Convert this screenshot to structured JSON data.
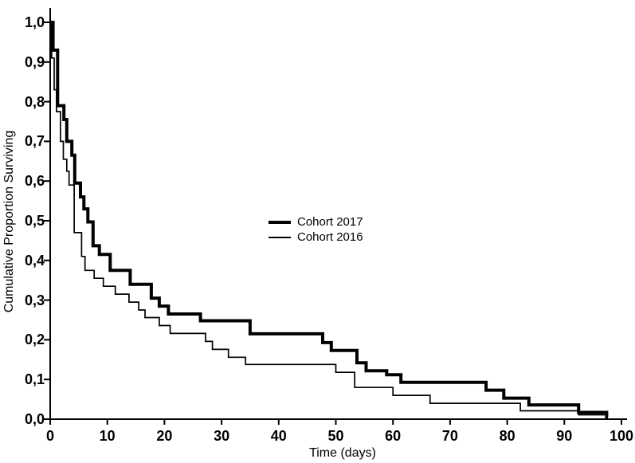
{
  "figure": {
    "background_color": "#ffffff",
    "ink_color": "#000000"
  },
  "chart_data": {
    "type": "line",
    "subtype": "kaplan-meier-step-survival",
    "title": "",
    "xlabel": "Time (days)",
    "ylabel": "Cumulative Proportion Surviving",
    "xlim": [
      0,
      100
    ],
    "ylim": [
      0.0,
      1.0
    ],
    "grid": false,
    "decimal_separator": "comma",
    "x_ticks": {
      "values": [
        0,
        10,
        20,
        30,
        40,
        50,
        60,
        70,
        80,
        90,
        100
      ],
      "labels": [
        "0",
        "10",
        "20",
        "30",
        "40",
        "50",
        "60",
        "70",
        "80",
        "90",
        "100"
      ]
    },
    "y_ticks": {
      "values": [
        0.0,
        0.1,
        0.2,
        0.3,
        0.4,
        0.5,
        0.6,
        0.7,
        0.8,
        0.9,
        1.0
      ],
      "labels": [
        "0,0",
        "0,1",
        "0,2",
        "0,3",
        "0,4",
        "0,5",
        "0,6",
        "0,7",
        "0,8",
        "0,9",
        "1,0"
      ]
    },
    "legend": {
      "position": "inside-plot-left-center",
      "items": [
        {
          "label": "Cohort 2017",
          "line_style": "thick"
        },
        {
          "label": "Cohort 2016",
          "line_style": "thin"
        }
      ]
    },
    "series": [
      {
        "name": "Cohort 2017",
        "color": "#000000",
        "line_width": 4,
        "end_time": 97.6,
        "points": [
          [
            0,
            1.0
          ],
          [
            0.5,
            0.93
          ],
          [
            1.3,
            0.79
          ],
          [
            2.4,
            0.755
          ],
          [
            2.9,
            0.7
          ],
          [
            3.8,
            0.665
          ],
          [
            4.3,
            0.595
          ],
          [
            5.3,
            0.56
          ],
          [
            5.9,
            0.53
          ],
          [
            6.6,
            0.497
          ],
          [
            7.5,
            0.437
          ],
          [
            8.6,
            0.415
          ],
          [
            10.5,
            0.375
          ],
          [
            14,
            0.34
          ],
          [
            17.7,
            0.305
          ],
          [
            19.1,
            0.285
          ],
          [
            20.7,
            0.265
          ],
          [
            26.3,
            0.248
          ],
          [
            35,
            0.215
          ],
          [
            47.7,
            0.193
          ],
          [
            49.2,
            0.173
          ],
          [
            53.7,
            0.142
          ],
          [
            55.3,
            0.122
          ],
          [
            58.9,
            0.112
          ],
          [
            61.4,
            0.093
          ],
          [
            76.3,
            0.073
          ],
          [
            79.4,
            0.053
          ],
          [
            83.8,
            0.036
          ],
          [
            92.5,
            0.017
          ],
          [
            97.4,
            0.005
          ]
        ]
      },
      {
        "name": "Cohort 2016",
        "color": "#000000",
        "line_width": 1.7,
        "end_time": 97.6,
        "points": [
          [
            0,
            1.0
          ],
          [
            0.25,
            0.91
          ],
          [
            0.7,
            0.83
          ],
          [
            1.1,
            0.775
          ],
          [
            1.8,
            0.7
          ],
          [
            2.3,
            0.655
          ],
          [
            2.9,
            0.625
          ],
          [
            3.3,
            0.59
          ],
          [
            4.2,
            0.47
          ],
          [
            5.5,
            0.41
          ],
          [
            6.1,
            0.375
          ],
          [
            7.7,
            0.355
          ],
          [
            9.3,
            0.335
          ],
          [
            11.4,
            0.315
          ],
          [
            13.8,
            0.295
          ],
          [
            15.5,
            0.275
          ],
          [
            16.6,
            0.256
          ],
          [
            19.1,
            0.236
          ],
          [
            21.0,
            0.216
          ],
          [
            27.2,
            0.196
          ],
          [
            28.4,
            0.176
          ],
          [
            31.2,
            0.156
          ],
          [
            34.2,
            0.138
          ],
          [
            50,
            0.118
          ],
          [
            53.3,
            0.08
          ],
          [
            60,
            0.06
          ],
          [
            66.5,
            0.04
          ],
          [
            82.3,
            0.021
          ],
          [
            92.5,
            0.011
          ],
          [
            97.5,
            0.002
          ]
        ]
      }
    ]
  }
}
